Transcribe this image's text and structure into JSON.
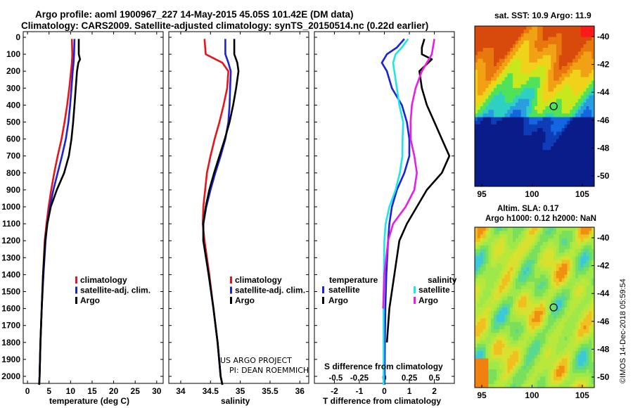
{
  "header": {
    "title_line1": "Argo profile: aoml 1900967_227 14-May-2015 45.05S 101.42E (DM data)",
    "title_line2": "Climatology: CARS2009. Satellite-adjusted climatology: synTS_20150514.nc (0.22d earlier)"
  },
  "sst_map": {
    "title": "sat. SST: 10.9 Argo: 11.9",
    "lat_ticks": [
      "-40",
      "-42",
      "-44",
      "-46",
      "-48",
      "-50"
    ],
    "lon_ticks": [
      "95",
      "100",
      "105"
    ]
  },
  "sla_map": {
    "title_line1": "Altim. SLA: 0.17",
    "title_line2": "Argo h1000: 0.12 h2000: NaN",
    "lat_ticks": [
      "-40",
      "-42",
      "-44",
      "-46",
      "-48",
      "-50"
    ],
    "lon_ticks": [
      "95",
      "100",
      "105"
    ]
  },
  "credit": {
    "line1": "US ARGO PROJECT",
    "line2": "PI: DEAN ROEMMICH"
  },
  "stamp": "©IMOS 14-Dec-2018 05:59:54",
  "colors": {
    "climatology": "#e8141b",
    "satellite": "#1b23d6",
    "argo": "#000000",
    "satellite_s": "#1ee6e6",
    "argo_s": "#e61ee6"
  },
  "chart_data": [
    {
      "type": "line",
      "name": "temperature-profile",
      "xlabel": "temperature (deg C)",
      "xlim": [
        -1,
        31.5
      ],
      "ylim": [
        2080,
        0
      ],
      "x_ticks": [
        "0",
        "5",
        "10",
        "15",
        "20",
        "25",
        "30"
      ],
      "y_ticks": [
        "0",
        "100",
        "200",
        "300",
        "400",
        "500",
        "600",
        "700",
        "800",
        "900",
        "1000",
        "1100",
        "1200",
        "1300",
        "1400",
        "1500",
        "1600",
        "1700",
        "1800",
        "1900",
        "2000"
      ],
      "legend": [
        "climatology",
        "satellite-adj. clim.",
        "Argo"
      ],
      "series": [
        {
          "key": "climatology",
          "depth": [
            10,
            100,
            150,
            200,
            300,
            400,
            500,
            600,
            700,
            800,
            900,
            1000,
            1100,
            1200,
            1400,
            1600,
            1800,
            2000,
            2050
          ],
          "values": [
            10.3,
            10.4,
            10.3,
            10.1,
            9.7,
            9.2,
            8.6,
            7.9,
            7.0,
            6.2,
            5.5,
            4.9,
            4.4,
            4.0,
            3.6,
            3.3,
            3.0,
            2.8,
            2.7
          ]
        },
        {
          "key": "satellite",
          "depth": [
            10,
            100,
            150,
            200,
            300,
            400,
            500,
            600,
            700,
            800,
            900,
            1000,
            1100,
            1200,
            1400,
            1600,
            1800,
            2000,
            2050
          ],
          "values": [
            10.9,
            10.8,
            10.7,
            10.5,
            10.2,
            9.9,
            9.5,
            8.9,
            8.0,
            7.0,
            6.0,
            5.2,
            4.6,
            4.2,
            3.7,
            3.3,
            3.0,
            2.8,
            2.7
          ]
        },
        {
          "key": "argo",
          "depth": [
            10,
            100,
            130,
            150,
            200,
            300,
            400,
            500,
            600,
            700,
            800,
            900,
            1000,
            1100,
            1200,
            1400,
            1600,
            1800,
            2000,
            2050
          ],
          "values": [
            11.9,
            11.9,
            12.2,
            11.8,
            11.5,
            11.2,
            10.9,
            10.6,
            10.2,
            9.6,
            8.5,
            6.8,
            5.4,
            4.6,
            4.1,
            3.6,
            3.3,
            3.0,
            2.8,
            2.7
          ]
        }
      ]
    },
    {
      "type": "line",
      "name": "salinity-profile",
      "xlabel": "salinity",
      "xlim": [
        33.8,
        36.15
      ],
      "ylim": [
        2080,
        0
      ],
      "x_ticks": [
        "34",
        "34.5",
        "35",
        "35.5",
        "36"
      ],
      "legend": [
        "climatology",
        "satellite-adj. clim.",
        "Argo"
      ],
      "series": [
        {
          "key": "climatology",
          "depth": [
            10,
            100,
            150,
            200,
            300,
            400,
            500,
            600,
            700,
            800,
            900,
            1000,
            1100,
            1200,
            1400,
            1600,
            1800,
            2000,
            2050
          ],
          "values": [
            34.4,
            34.42,
            34.7,
            34.8,
            34.78,
            34.72,
            34.65,
            34.57,
            34.5,
            34.44,
            34.41,
            34.38,
            34.37,
            34.4,
            34.48,
            34.55,
            34.62,
            34.67,
            34.7
          ]
        },
        {
          "key": "satellite",
          "depth": [
            10,
            100,
            150,
            200,
            300,
            400,
            500,
            600,
            700,
            800,
            900,
            1000,
            1100,
            1200,
            1400,
            1600,
            1800,
            2000,
            2050
          ],
          "values": [
            34.75,
            34.75,
            34.8,
            34.84,
            34.83,
            34.82,
            34.8,
            34.75,
            34.67,
            34.58,
            34.5,
            34.43,
            34.38,
            34.38,
            34.47,
            34.55,
            34.62,
            34.67,
            34.7
          ]
        },
        {
          "key": "argo",
          "depth": [
            10,
            100,
            150,
            200,
            300,
            400,
            500,
            600,
            700,
            800,
            900,
            1000,
            1100,
            1200,
            1400,
            1600,
            1800,
            2000,
            2050
          ],
          "values": [
            34.9,
            34.9,
            34.95,
            34.97,
            34.93,
            34.88,
            34.82,
            34.74,
            34.65,
            34.56,
            34.48,
            34.42,
            34.38,
            34.38,
            34.47,
            34.55,
            34.62,
            34.67,
            34.7
          ]
        }
      ]
    },
    {
      "type": "line",
      "name": "difference-profile",
      "xlabel": "T difference from climatology",
      "xlabel_top": "S difference from climatology",
      "xlim": [
        -2.8,
        2.8
      ],
      "ylim": [
        2080,
        0
      ],
      "x_ticks": [
        "-2",
        "-1",
        "0",
        "1",
        "2"
      ],
      "x2_ticks": [
        "-0.5",
        "-0.25",
        "0",
        "0.25",
        "0.5"
      ],
      "legend_temperature": {
        "title": "temperature",
        "items": [
          "satellite",
          "Argo"
        ]
      },
      "legend_salinity": {
        "title": "salinity",
        "items": [
          "satellite",
          "Argo"
        ]
      },
      "series": [
        {
          "key": "satellite",
          "name": "satellite",
          "depth": [
            10,
            60,
            100,
            150,
            200,
            300,
            400,
            500,
            600,
            700,
            800,
            900,
            1000,
            1100,
            1200,
            1400,
            1600,
            1800,
            2000,
            2050
          ],
          "values": [
            0.8,
            0.5,
            0.1,
            -0.1,
            0.1,
            0.3,
            0.7,
            0.9,
            1.0,
            1.0,
            0.8,
            0.5,
            0.3,
            0.2,
            0.15,
            0.08,
            0.04,
            0.02,
            0.01,
            0.0
          ]
        },
        {
          "key": "argo",
          "name": "Argo",
          "depth": [
            10,
            60,
            100,
            130,
            200,
            300,
            400,
            500,
            600,
            700,
            800,
            900,
            1000,
            1100,
            1200,
            1400,
            1600,
            1800
          ],
          "values": [
            1.6,
            1.5,
            1.5,
            1.9,
            1.4,
            1.5,
            1.7,
            2.0,
            2.3,
            2.6,
            2.3,
            1.7,
            1.3,
            0.9,
            0.6,
            0.4,
            0.2,
            0.1
          ]
        },
        {
          "key": "satellite_s",
          "name": "satellite",
          "depth": [
            10,
            60,
            100,
            150,
            200,
            300,
            400,
            500,
            600,
            700,
            800,
            900,
            1000,
            1100,
            1200,
            1400,
            1600,
            1800,
            2000,
            2050
          ],
          "values": [
            0.95,
            0.7,
            0.45,
            0.35,
            0.4,
            0.5,
            0.6,
            0.75,
            0.73,
            0.72,
            0.62,
            0.45,
            0.2,
            0.05,
            0.0,
            -0.02,
            -0.03,
            -0.03,
            -0.03,
            -0.03
          ]
        },
        {
          "key": "argo_s",
          "name": "Argo",
          "depth": [
            10,
            100,
            150,
            200,
            300,
            400,
            500,
            600,
            700,
            800,
            900,
            1000,
            1100,
            1200,
            1400,
            1600
          ],
          "values": [
            2.0,
            1.9,
            1.7,
            1.5,
            1.25,
            1.1,
            1.05,
            1.05,
            1.2,
            1.3,
            1.2,
            0.85,
            0.35,
            0.15,
            0.0,
            -0.05
          ]
        }
      ]
    }
  ]
}
